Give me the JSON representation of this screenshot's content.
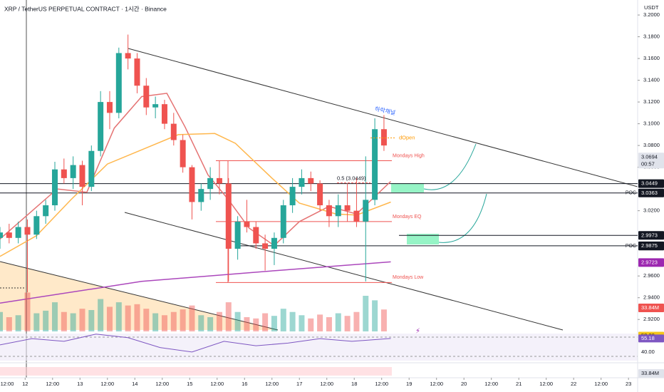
{
  "header": {
    "title": "XRP / TetherUS PERPETUAL CONTRACT · 1시간 · Binance",
    "currency": "USDT"
  },
  "chart_data": {
    "type": "candlestick",
    "x": [
      -11,
      -7,
      -3,
      1,
      5,
      9,
      13,
      17,
      21,
      25,
      29,
      33,
      37,
      41,
      45,
      49,
      53,
      57,
      61,
      65,
      69,
      73,
      77,
      81,
      85,
      89,
      93,
      97,
      101,
      105,
      109,
      113,
      117,
      121,
      125,
      129,
      133,
      137,
      141,
      145,
      149,
      153,
      157
    ],
    "open": [
      2.995,
      3.0,
      2.995,
      3.005,
      2.998,
      3.015,
      3.025,
      3.058,
      3.05,
      3.062,
      3.042,
      3.075,
      3.12,
      3.11,
      3.165,
      3.16,
      3.135,
      3.115,
      3.118,
      3.1,
      3.085,
      3.06,
      3.028,
      3.04,
      3.05,
      3.045,
      2.985,
      3.01,
      3.005,
      2.99,
      2.985,
      2.995,
      3.025,
      3.042,
      3.05,
      3.045,
      3.025,
      3.015,
      3.025,
      3.02,
      3.01,
      3.03,
      3.095
    ],
    "high": [
      3.005,
      3.008,
      3.01,
      3.012,
      3.02,
      3.03,
      3.065,
      3.068,
      3.07,
      3.066,
      3.08,
      3.13,
      3.13,
      3.17,
      3.182,
      3.165,
      3.142,
      3.125,
      3.122,
      3.11,
      3.09,
      3.062,
      3.045,
      3.06,
      3.066,
      3.05,
      3.015,
      3.03,
      3.01,
      2.998,
      3.0,
      3.03,
      3.05,
      3.058,
      3.056,
      3.048,
      3.03,
      3.035,
      3.045,
      3.05,
      3.07,
      3.105,
      3.108
    ],
    "low": [
      2.985,
      2.99,
      2.99,
      2.945,
      2.994,
      3.008,
      3.02,
      3.045,
      3.04,
      3.025,
      3.038,
      3.07,
      3.095,
      3.105,
      3.15,
      3.128,
      3.108,
      3.105,
      3.095,
      3.08,
      3.055,
      3.012,
      3.02,
      3.03,
      3.035,
      2.955,
      2.975,
      3.0,
      2.985,
      2.965,
      2.97,
      2.99,
      3.018,
      3.035,
      3.038,
      3.02,
      3.005,
      3.005,
      3.01,
      3.005,
      2.955,
      3.025,
      3.075
    ],
    "close": [
      3.0,
      2.995,
      3.005,
      2.998,
      3.015,
      3.025,
      3.058,
      3.05,
      3.062,
      3.042,
      3.075,
      3.12,
      3.11,
      3.165,
      3.16,
      3.135,
      3.115,
      3.118,
      3.1,
      3.085,
      3.06,
      3.028,
      3.04,
      3.05,
      3.045,
      2.985,
      3.01,
      3.005,
      2.99,
      2.985,
      2.995,
      3.025,
      3.042,
      3.05,
      3.045,
      3.025,
      3.015,
      3.025,
      3.02,
      3.01,
      3.03,
      3.095,
      3.08
    ],
    "volume": [
      30,
      22,
      25,
      60,
      28,
      32,
      45,
      30,
      28,
      35,
      33,
      50,
      38,
      45,
      40,
      42,
      35,
      28,
      25,
      30,
      34,
      40,
      25,
      22,
      30,
      45,
      30,
      22,
      20,
      28,
      24,
      35,
      30,
      25,
      20,
      26,
      22,
      28,
      24,
      30,
      55,
      48,
      33.84
    ],
    "volume_lim": [
      0,
      110
    ],
    "up_color": "#26a69a",
    "down_color": "#ef5350",
    "xlim": [
      -11,
      268
    ],
    "ylim": [
      2.909,
      3.2138
    ],
    "xticks": [
      {
        "value": -12,
        "label": "12:00"
      },
      {
        "value": 0,
        "label": "12"
      },
      {
        "value": 12,
        "label": "12:00"
      },
      {
        "value": 24,
        "label": "13"
      },
      {
        "value": 36,
        "label": "12:00"
      },
      {
        "value": 48,
        "label": "14"
      },
      {
        "value": 60,
        "label": "12:00"
      },
      {
        "value": 72,
        "label": "15"
      },
      {
        "value": 84,
        "label": "12:00"
      },
      {
        "value": 96,
        "label": "16"
      },
      {
        "value": 108,
        "label": "12:00"
      },
      {
        "value": 120,
        "label": "17"
      },
      {
        "value": 132,
        "label": "12:00"
      },
      {
        "value": 144,
        "label": "18"
      },
      {
        "value": 156,
        "label": "12:00"
      },
      {
        "value": 168,
        "label": "19"
      },
      {
        "value": 180,
        "label": "12:00"
      },
      {
        "value": 192,
        "label": "20"
      },
      {
        "value": 204,
        "label": "12:00"
      },
      {
        "value": 216,
        "label": "21"
      },
      {
        "value": 228,
        "label": "12:00"
      },
      {
        "value": 240,
        "label": "22"
      },
      {
        "value": 252,
        "label": "12:00"
      },
      {
        "value": 264,
        "label": "23"
      }
    ],
    "yticks": [
      {
        "value": 3.2,
        "label": "3.2000"
      },
      {
        "value": 3.18,
        "label": "3.1800"
      },
      {
        "value": 3.16,
        "label": "3.1600"
      },
      {
        "value": 3.14,
        "label": "3.1400"
      },
      {
        "value": 3.12,
        "label": "3.1200"
      },
      {
        "value": 3.1,
        "label": "3.1000"
      },
      {
        "value": 3.08,
        "label": "3.0800"
      },
      {
        "value": 3.06,
        "label": "3.0600"
      },
      {
        "value": 3.02,
        "label": "3.0200"
      },
      {
        "value": 2.96,
        "label": "2.9600"
      },
      {
        "value": 2.94,
        "label": "2.9400"
      },
      {
        "value": 2.92,
        "label": "2.9200"
      }
    ],
    "overlays": [
      {
        "color": "#e57373",
        "x": [
          -11,
          14,
          27,
          39,
          51,
          62,
          70,
          80,
          89,
          98,
          109,
          120,
          133,
          145,
          160
        ],
        "values": [
          2.994,
          3.04,
          3.037,
          3.096,
          3.125,
          3.128,
          3.097,
          3.053,
          3.03,
          3.004,
          2.988,
          3.01,
          3.024,
          3.017,
          3.047
        ]
      },
      {
        "color": "#ffb74d",
        "x": [
          -11,
          5,
          20,
          36,
          51,
          67,
          83,
          92,
          108,
          120,
          136,
          145,
          160
        ],
        "values": [
          2.978,
          2.997,
          3.03,
          3.063,
          3.076,
          3.09,
          3.091,
          3.082,
          3.05,
          3.027,
          3.017,
          3.016,
          3.028
        ]
      },
      {
        "color": "#ab47bc",
        "x": [
          -11,
          51,
          110,
          160
        ],
        "values": [
          2.935,
          2.955,
          2.965,
          2.973
        ]
      }
    ],
    "levels": [
      {
        "value": 3.0449,
        "label": "3.0449"
      },
      {
        "value": 3.0363,
        "label": "3.0363",
        "tag": "POC"
      },
      {
        "value": 2.9973,
        "label": "2.9973"
      },
      {
        "value": 2.9877,
        "label": "2.9877",
        "tag": "POC"
      }
    ],
    "price_labels": [
      {
        "value": 3.0694,
        "label": "3.0694",
        "time": "00:57",
        "color": "#e0e3eb"
      },
      {
        "value": 2.9875,
        "label": "2.9875",
        "color": "#131722"
      },
      {
        "value": 2.9723,
        "label": "2.9723",
        "color": "#9c27b0"
      }
    ],
    "volume_label": "33.84M",
    "mondays": [
      {
        "label": "Mondays High",
        "value": 3.066
      },
      {
        "label": "Mondays EQ",
        "value": 3.01
      },
      {
        "label": "Mondays Low",
        "value": 2.954
      }
    ],
    "annotations": {
      "fib": "0.5 (3.0449)",
      "open": "dOpen",
      "open_value": 3.087,
      "channel": "하락채널"
    },
    "rsi": {
      "ylim": [
        30,
        60
      ],
      "x": [
        -11,
        3,
        17,
        31,
        45,
        59,
        73,
        87,
        101,
        115,
        129,
        143,
        160
      ],
      "values": [
        48,
        55,
        52,
        60,
        56,
        45,
        40,
        52,
        47,
        50,
        55,
        52,
        55.18
      ],
      "color": "#7e57c2",
      "labels": [
        {
          "value": 58.28,
          "label": "58.28",
          "color": "#f5c518"
        },
        {
          "value": 55.18,
          "label": "55.18",
          "color": "#7e57c2"
        },
        {
          "value": 40,
          "label": "40.00",
          "color": "#ffffff"
        }
      ]
    }
  }
}
